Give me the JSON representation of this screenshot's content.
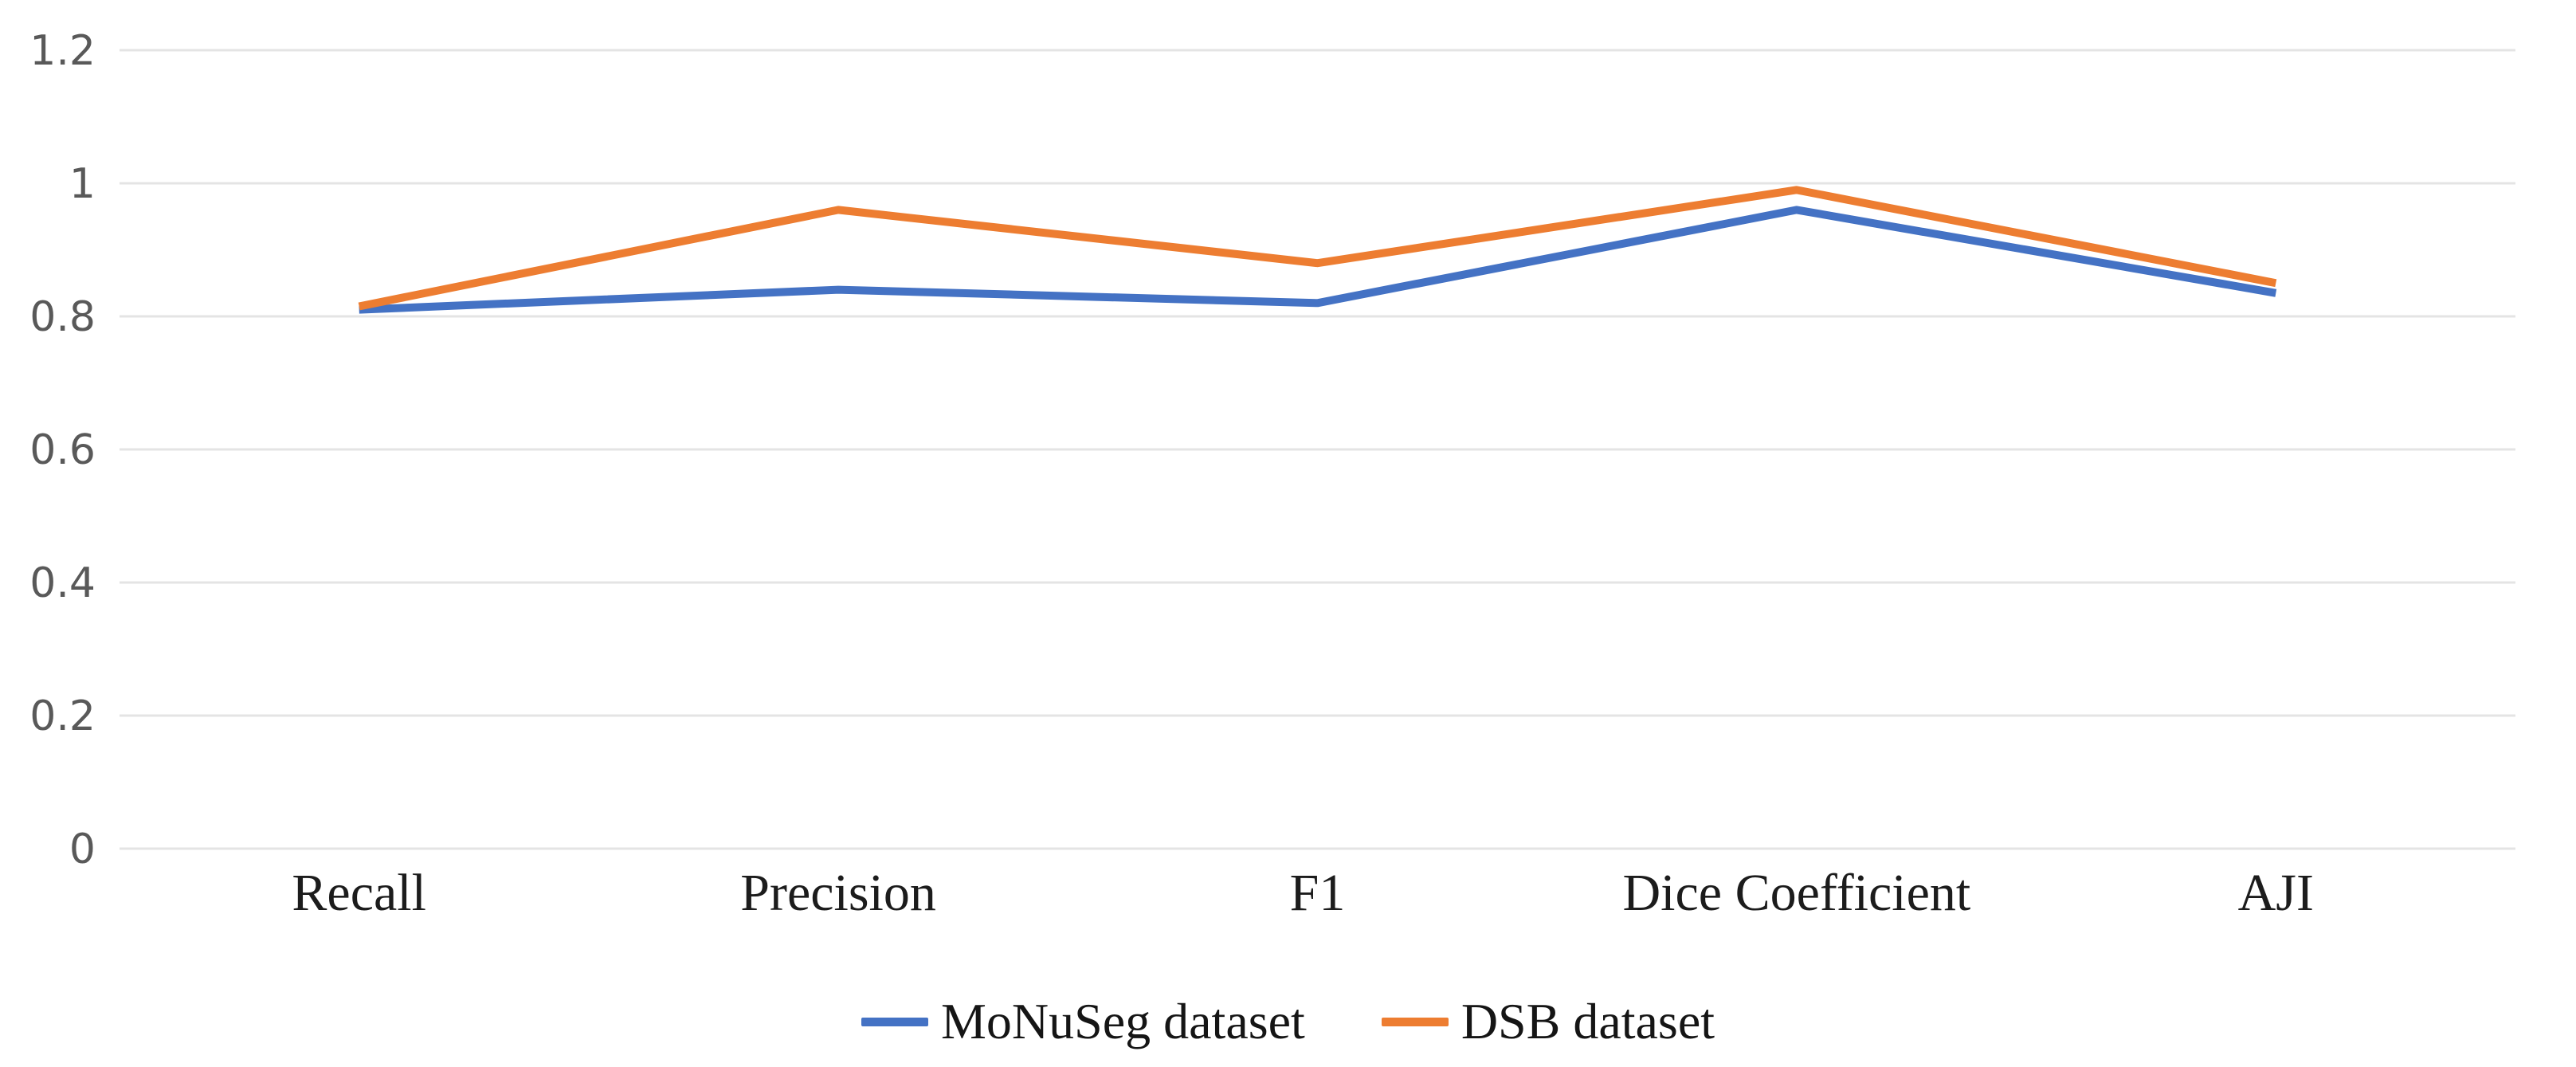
{
  "chart_data": {
    "type": "line",
    "title": "",
    "xlabel": "",
    "ylabel": "",
    "categories": [
      "Recall",
      "Precision",
      "F1",
      "Dice Coefficient",
      "AJI"
    ],
    "series": [
      {
        "name": "MoNuSeg dataset",
        "color": "#4472C4",
        "values": [
          0.81,
          0.84,
          0.82,
          0.96,
          0.835
        ]
      },
      {
        "name": "DSB dataset",
        "color": "#ED7D31",
        "values": [
          0.815,
          0.96,
          0.88,
          0.99,
          0.85
        ]
      }
    ],
    "ylim": [
      0,
      1.2
    ],
    "yticks": [
      0,
      0.2,
      0.4,
      0.6,
      0.8,
      1,
      1.2
    ],
    "ytick_labels": [
      "0",
      "0.2",
      "0.4",
      "0.6",
      "0.8",
      "1",
      "1.2"
    ],
    "grid": true,
    "legend_position": "bottom-center",
    "colors": {
      "background": "#FFFFFF",
      "gridline": "#E4E4E4",
      "ytick_text": "#595959",
      "xtick_text": "#1C1C1C"
    }
  }
}
